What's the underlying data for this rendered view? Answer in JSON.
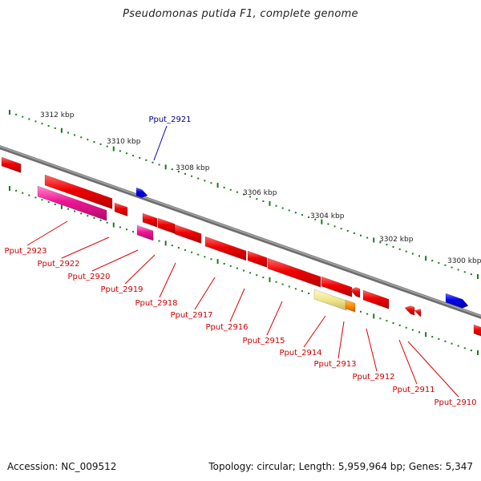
{
  "title": "Pseudomonas putida F1, complete genome",
  "footer": {
    "accession": "Accession: NC_009512",
    "summary": "Topology: circular; Length: 5,959,964 bp; Genes: 5,347"
  },
  "ticks": [
    "3312 kbp",
    "3310 kbp",
    "3308 kbp",
    "3306 kbp",
    "3304 kbp",
    "3302 kbp",
    "3300 kbp"
  ],
  "forward_labels": [
    "Pput_2921"
  ],
  "reverse_labels": [
    "Pput_2923",
    "Pput_2922",
    "Pput_2920",
    "Pput_2919",
    "Pput_2918",
    "Pput_2917",
    "Pput_2916",
    "Pput_2915",
    "Pput_2914",
    "Pput_2913",
    "Pput_2912",
    "Pput_2911",
    "Pput_2910"
  ],
  "colors": {
    "forward_gene": "#0000ee",
    "reverse_gene": "#ee0000",
    "pink_feature": "#ee1493",
    "pale_feature": "#f0e68c",
    "orange_feature": "#ff8c00",
    "backbone": "#808080",
    "tick": "#1a7a1a",
    "reverse_label": "#cc0000",
    "forward_label": "#00008b"
  }
}
